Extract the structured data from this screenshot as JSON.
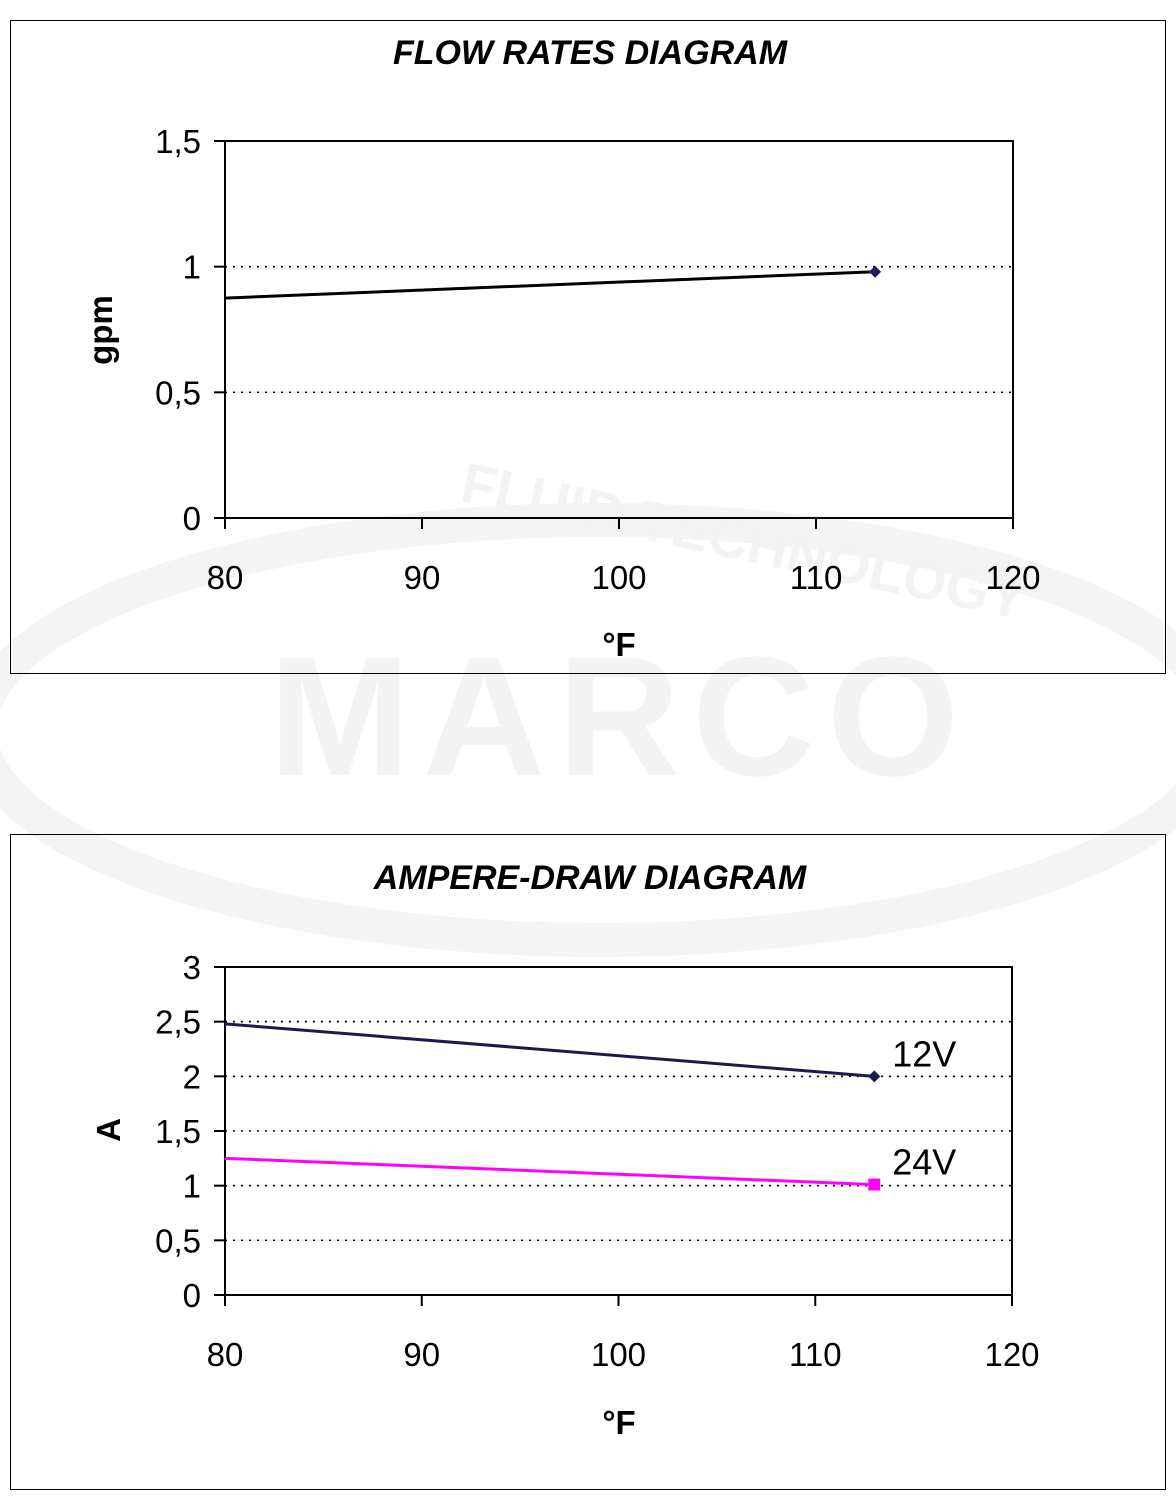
{
  "watermark": {
    "brand": "MARCO",
    "tagline": "FLUID TECHNOLOGY"
  },
  "chart_data": [
    {
      "type": "line",
      "title": "FLOW RATES DIAGRAM",
      "xlabel": "°F",
      "ylabel": "gpm",
      "xlim": [
        80,
        120
      ],
      "ylim": [
        0,
        1.5
      ],
      "x_ticks": [
        "80",
        "90",
        "100",
        "110",
        "120"
      ],
      "y_ticks": [
        "0",
        "0,5",
        "1",
        "1,5"
      ],
      "grid": "horizontal dotted",
      "series": [
        {
          "name": "",
          "color": "#000000",
          "marker_color": "#1a1a5e",
          "marker": "diamond",
          "x": [
            80,
            113
          ],
          "y": [
            0.875,
            0.98
          ]
        }
      ]
    },
    {
      "type": "line",
      "title": "AMPERE-DRAW DIAGRAM",
      "xlabel": "°F",
      "ylabel": "A",
      "xlim": [
        80,
        120
      ],
      "ylim": [
        0,
        3
      ],
      "x_ticks": [
        "80",
        "90",
        "100",
        "110",
        "120"
      ],
      "y_ticks": [
        "0",
        "0,5",
        "1",
        "1,5",
        "2",
        "2,5",
        "3"
      ],
      "grid": "horizontal dotted",
      "series": [
        {
          "name": "12V",
          "color": "#1a1a4e",
          "marker": "diamond",
          "x": [
            80,
            113
          ],
          "y": [
            2.48,
            2.0
          ]
        },
        {
          "name": "24V",
          "color": "#ff00ff",
          "marker": "square",
          "x": [
            80,
            113
          ],
          "y": [
            1.25,
            1.01
          ]
        }
      ]
    }
  ]
}
